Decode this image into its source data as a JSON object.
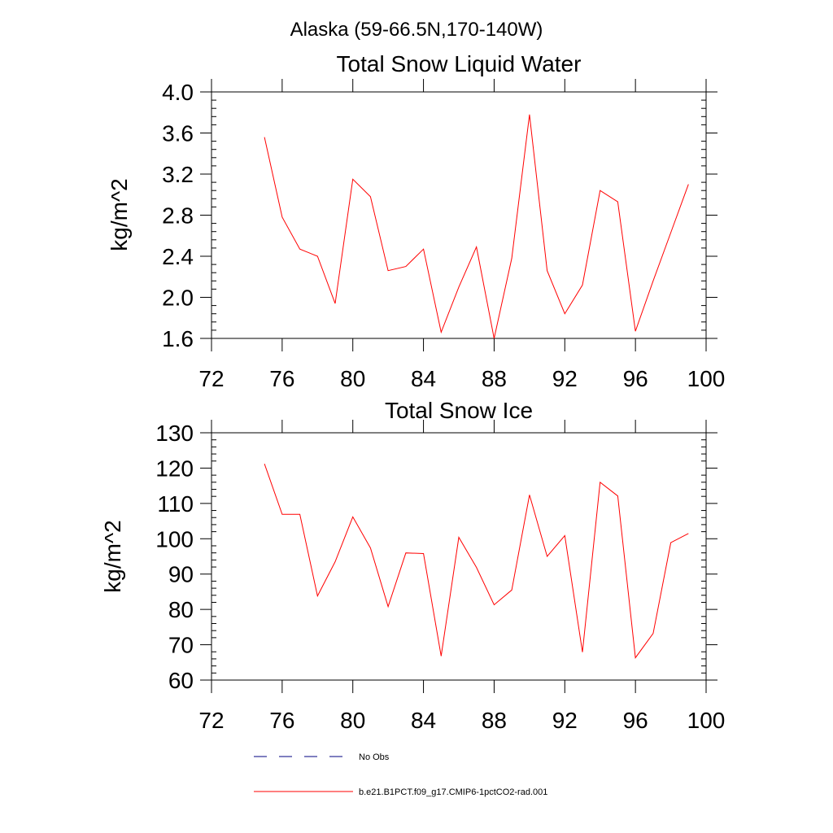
{
  "figure_title": "Alaska (59-66.5N,170-140W)",
  "colors": {
    "model": "#ff0000",
    "obs": "#000080",
    "axis": "#000000"
  },
  "chart_data": [
    {
      "type": "line",
      "title": "Total Snow Liquid Water",
      "xlabel": "",
      "ylabel": "kg/m^2",
      "xlim": [
        72,
        100
      ],
      "ylim": [
        1.6,
        4.0
      ],
      "xticks": [
        "72",
        "76",
        "80",
        "84",
        "88",
        "92",
        "96",
        "100"
      ],
      "yticks": [
        "1.6",
        "2.0",
        "2.4",
        "2.8",
        "3.2",
        "3.6",
        "4.0"
      ],
      "x": [
        75,
        76,
        77,
        78,
        79,
        80,
        81,
        82,
        83,
        84,
        85,
        86,
        87,
        88,
        89,
        90,
        91,
        92,
        93,
        94,
        95,
        96,
        97,
        98,
        99
      ],
      "series": [
        {
          "name": "b.e21.B1PCT.f09_g17.CMIP6-1pctCO2-rad.001",
          "values": [
            3.56,
            2.78,
            2.47,
            2.4,
            1.94,
            3.15,
            2.98,
            2.26,
            2.3,
            2.47,
            1.66,
            2.1,
            2.49,
            1.6,
            2.38,
            3.78,
            2.26,
            1.84,
            2.12,
            3.04,
            2.93,
            1.67,
            2.16,
            2.63,
            3.1
          ]
        }
      ]
    },
    {
      "type": "line",
      "title": "Total Snow Ice",
      "xlabel": "",
      "ylabel": "kg/m^2",
      "xlim": [
        72,
        100
      ],
      "ylim": [
        60,
        130
      ],
      "xticks": [
        "72",
        "76",
        "80",
        "84",
        "88",
        "92",
        "96",
        "100"
      ],
      "yticks": [
        "60",
        "70",
        "80",
        "90",
        "100",
        "110",
        "120",
        "130"
      ],
      "x": [
        75,
        76,
        77,
        78,
        79,
        80,
        81,
        82,
        83,
        84,
        85,
        86,
        87,
        88,
        89,
        90,
        91,
        92,
        93,
        94,
        95,
        96,
        97,
        98,
        99
      ],
      "series": [
        {
          "name": "b.e21.B1PCT.f09_g17.CMIP6-1pctCO2-rad.001",
          "values": [
            121.2,
            106.9,
            106.9,
            83.8,
            93.5,
            106.2,
            97.4,
            80.8,
            96.0,
            95.8,
            66.8,
            100.4,
            91.9,
            81.3,
            85.5,
            112.4,
            95.0,
            100.9,
            67.9,
            116.0,
            112.1,
            66.3,
            73.2,
            98.9,
            101.5
          ]
        }
      ]
    }
  ],
  "legend": [
    {
      "label": "No Obs",
      "style": "dashed",
      "color": "#000080"
    },
    {
      "label": "b.e21.B1PCT.f09_g17.CMIP6-1pctCO2-rad.001",
      "style": "solid",
      "color": "#ff0000"
    }
  ]
}
